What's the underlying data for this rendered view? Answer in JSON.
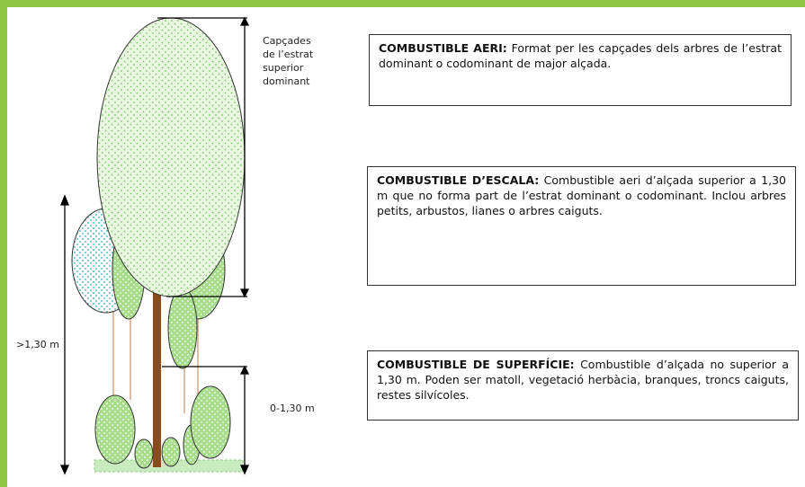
{
  "crown_label": {
    "lines": [
      "Capçades",
      "de l’estrat",
      "superior",
      "dominant"
    ]
  },
  "height_labels": {
    "above": ">1,30 m",
    "below": "0-1,30 m"
  },
  "boxes": [
    {
      "title": "COMBUSTIBLE AERI:",
      "text": "Format per les capçades dels arbres de l’estrat dominant o codominant de major alçada."
    },
    {
      "title": "COMBUSTIBLE D’ESCALA:",
      "text": "Combustible aeri d’alçada superior a 1,30 m que no forma part de l’estrat dominant o codominant. Inclou arbres petits, arbustos, lianes o arbres caiguts."
    },
    {
      "title": "COMBUSTIBLE DE SUPERFÍCIE:",
      "text": "Combustible d’alçada no superior a 1,30 m. Poden ser matoll, vegetació herbàcia, branques, troncs caiguts, restes silvícoles."
    }
  ]
}
